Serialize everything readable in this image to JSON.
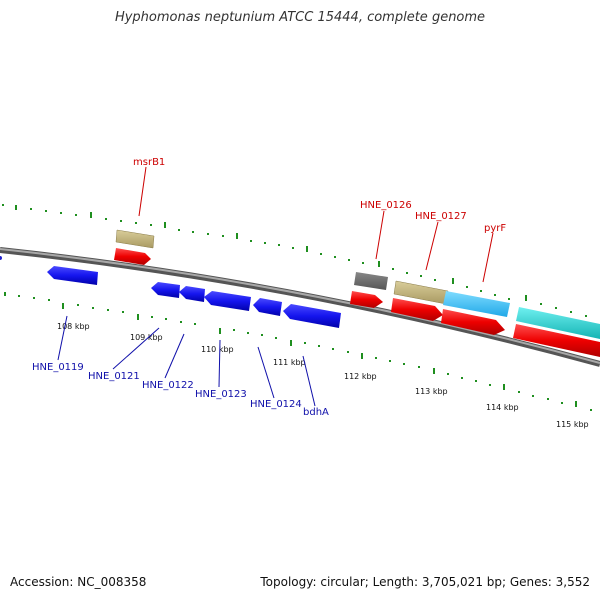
{
  "title": "Hyphomonas neptunium ATCC 15444, complete genome",
  "footer": {
    "accession": "Accession: NC_008358",
    "summary": "Topology: circular; Length: 3,705,021 bp; Genes: 3,552"
  },
  "colors": {
    "backbone": "#8c8c8c",
    "tick_plus": "#1f8f1f",
    "tick_minus": "#1f8f1f",
    "plus_label": "#cc0000",
    "minus_label": "#1010aa"
  },
  "scale_labels": [
    "108 kbp",
    "109 kbp",
    "110 kbp",
    "111 kbp",
    "112 kbp",
    "113 kbp",
    "114 kbp",
    "115 kbp"
  ],
  "plus_labels": [
    "msrB1",
    "HNE_0126",
    "HNE_0127",
    "pyrF"
  ],
  "minus_labels": [
    "HNE_0119",
    "HNE_0121",
    "HNE_0122",
    "HNE_0123",
    "HNE_0124",
    "bdhA"
  ]
}
